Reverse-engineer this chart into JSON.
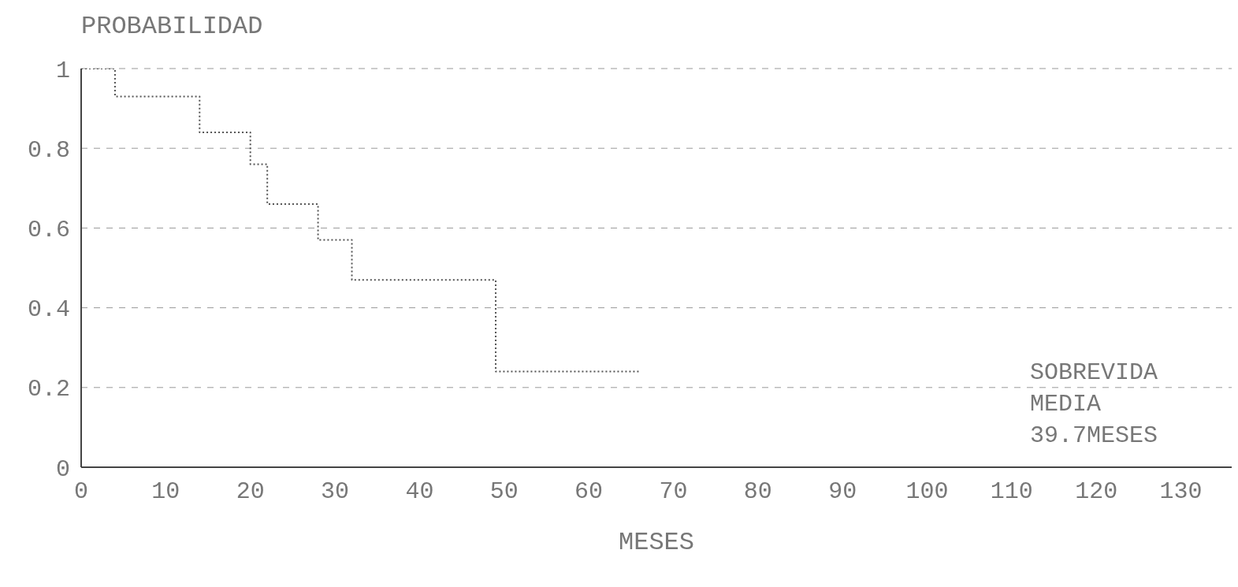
{
  "chart_data": {
    "type": "step",
    "ylabel": "PROBABILIDAD",
    "xlabel": "MESES",
    "annotations": [
      "SOBREVIDA MEDIA 39.7MESES"
    ],
    "x": [
      0,
      4,
      14,
      20,
      22,
      28,
      32,
      49,
      66
    ],
    "series": [
      {
        "color": "#555555",
        "values": [
          1,
          0.93,
          0.84,
          0.76,
          0.66,
          0.57,
          0.47,
          0.24,
          0.24
        ]
      }
    ],
    "xlim": [
      0,
      136
    ],
    "xticks": [
      0,
      10,
      20,
      30,
      40,
      50,
      60,
      70,
      80,
      90,
      100,
      110,
      120,
      130
    ],
    "ylim": [
      0,
      1
    ],
    "yticks": [
      0,
      0.2,
      0.4,
      0.6,
      0.8,
      1
    ],
    "grid": "y",
    "line_style": "dotted",
    "marker": "none"
  }
}
